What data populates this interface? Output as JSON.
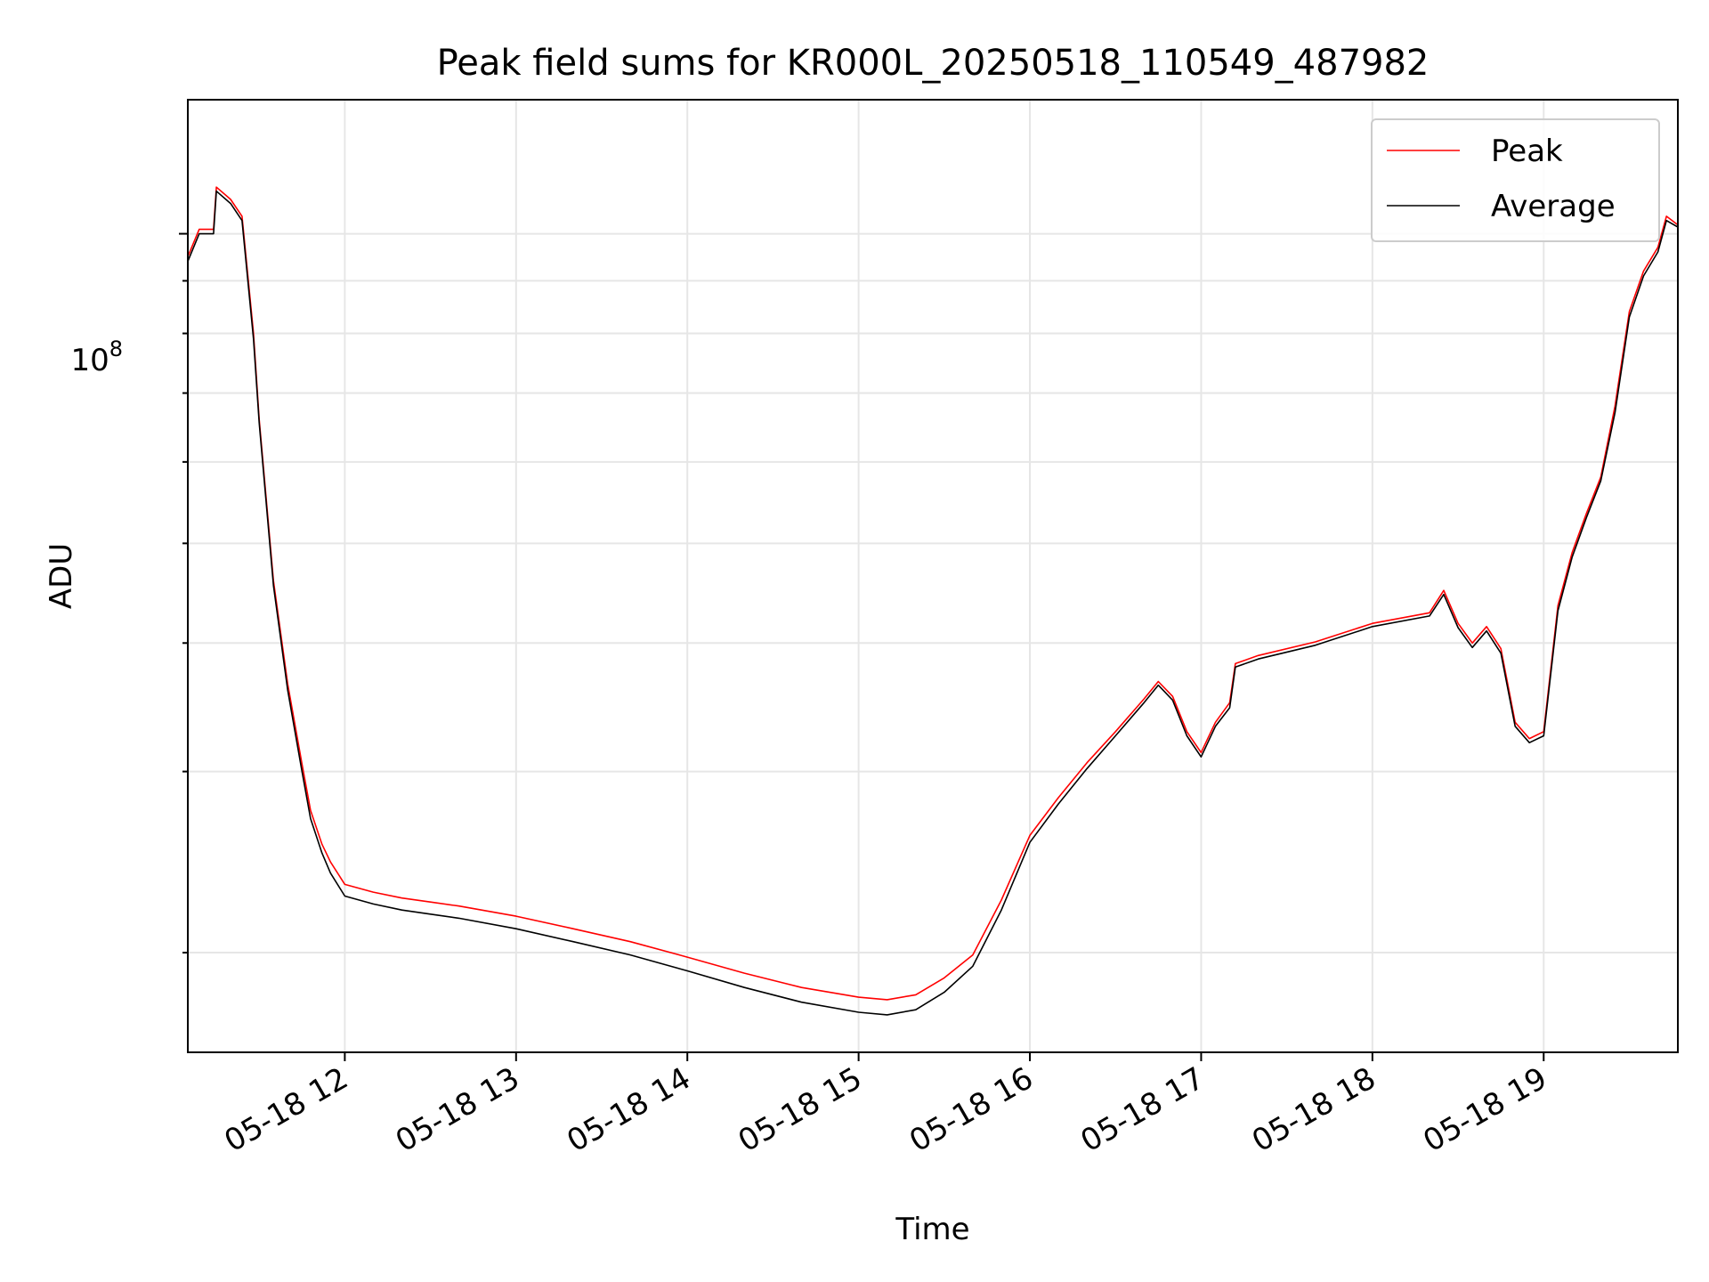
{
  "chart_data": {
    "type": "line",
    "title": "Peak field sums for KR000L_20250518_110549_487982",
    "xlabel": "Time",
    "ylabel": "ADU",
    "yscale": "log",
    "x_ticks": [
      "05-18 12",
      "05-18 13",
      "05-18 14",
      "05-18 15",
      "05-18 16",
      "05-18 17",
      "05-18 18",
      "05-18 19"
    ],
    "y_major_tick_base": "10",
    "y_major_tick_exp": "8",
    "xlim": [
      "2025-05-18 11:05",
      "2025-05-18 19:47"
    ],
    "ylim": [
      16000000,
      135000000
    ],
    "grid": true,
    "legend_position": "top-right",
    "series": [
      {
        "name": "Peak",
        "color": "#ff0000",
        "points": [
          [
            "11:05",
            95000000
          ],
          [
            "11:09",
            101000000
          ],
          [
            "11:14",
            101000000
          ],
          [
            "11:15",
            111000000
          ],
          [
            "11:20",
            108000000
          ],
          [
            "11:24",
            104000000
          ],
          [
            "11:28",
            80000000
          ],
          [
            "11:30",
            66000000
          ],
          [
            "11:35",
            46000000
          ],
          [
            "11:40",
            36500000
          ],
          [
            "11:45",
            30500000
          ],
          [
            "11:48",
            27500000
          ],
          [
            "11:52",
            25500000
          ],
          [
            "11:55",
            24500000
          ],
          [
            "12:00",
            23300000
          ],
          [
            "12:10",
            22900000
          ],
          [
            "12:20",
            22600000
          ],
          [
            "12:30",
            22400000
          ],
          [
            "12:40",
            22200000
          ],
          [
            "13:00",
            21700000
          ],
          [
            "13:20",
            21100000
          ],
          [
            "13:40",
            20500000
          ],
          [
            "14:00",
            19800000
          ],
          [
            "14:20",
            19100000
          ],
          [
            "14:40",
            18500000
          ],
          [
            "15:00",
            18100000
          ],
          [
            "15:10",
            18000000
          ],
          [
            "15:20",
            18200000
          ],
          [
            "15:30",
            18900000
          ],
          [
            "15:40",
            19900000
          ],
          [
            "15:50",
            22500000
          ],
          [
            "16:00",
            26000000
          ],
          [
            "16:10",
            28300000
          ],
          [
            "16:20",
            30600000
          ],
          [
            "16:30",
            32800000
          ],
          [
            "16:40",
            35300000
          ],
          [
            "16:45",
            36700000
          ],
          [
            "16:50",
            35500000
          ],
          [
            "16:55",
            32800000
          ],
          [
            "17:00",
            31300000
          ],
          [
            "17:05",
            33500000
          ],
          [
            "17:10",
            35000000
          ],
          [
            "17:12",
            38200000
          ],
          [
            "17:20",
            38900000
          ],
          [
            "17:40",
            40100000
          ],
          [
            "18:00",
            41800000
          ],
          [
            "18:20",
            42800000
          ],
          [
            "18:25",
            45000000
          ],
          [
            "18:30",
            41800000
          ],
          [
            "18:35",
            40000000
          ],
          [
            "18:40",
            41500000
          ],
          [
            "18:45",
            39500000
          ],
          [
            "18:50",
            33500000
          ],
          [
            "18:55",
            32300000
          ],
          [
            "19:00",
            32800000
          ],
          [
            "19:05",
            43500000
          ],
          [
            "19:10",
            49000000
          ],
          [
            "19:15",
            53500000
          ],
          [
            "19:20",
            58000000
          ],
          [
            "19:25",
            68000000
          ],
          [
            "19:30",
            84000000
          ],
          [
            "19:35",
            92000000
          ],
          [
            "19:40",
            97000000
          ],
          [
            "19:43",
            104000000
          ],
          [
            "19:47",
            102000000
          ]
        ]
      },
      {
        "name": "Average",
        "color": "#000000",
        "points": [
          [
            "11:05",
            94000000
          ],
          [
            "11:09",
            100000000
          ],
          [
            "11:14",
            100000000
          ],
          [
            "11:15",
            110000000
          ],
          [
            "11:20",
            107000000
          ],
          [
            "11:24",
            103000000
          ],
          [
            "11:28",
            79000000
          ],
          [
            "11:30",
            65500000
          ],
          [
            "11:35",
            45500000
          ],
          [
            "11:40",
            36000000
          ],
          [
            "11:45",
            30000000
          ],
          [
            "11:48",
            27000000
          ],
          [
            "11:52",
            25000000
          ],
          [
            "11:55",
            23900000
          ],
          [
            "12:00",
            22700000
          ],
          [
            "12:10",
            22300000
          ],
          [
            "12:20",
            22000000
          ],
          [
            "12:30",
            21800000
          ],
          [
            "12:40",
            21600000
          ],
          [
            "13:00",
            21100000
          ],
          [
            "13:20",
            20500000
          ],
          [
            "13:40",
            19900000
          ],
          [
            "14:00",
            19200000
          ],
          [
            "14:20",
            18500000
          ],
          [
            "14:40",
            17900000
          ],
          [
            "15:00",
            17500000
          ],
          [
            "15:10",
            17400000
          ],
          [
            "15:20",
            17600000
          ],
          [
            "15:30",
            18300000
          ],
          [
            "15:40",
            19400000
          ],
          [
            "15:50",
            22000000
          ],
          [
            "16:00",
            25600000
          ],
          [
            "16:10",
            27900000
          ],
          [
            "16:20",
            30200000
          ],
          [
            "16:30",
            32500000
          ],
          [
            "16:40",
            35000000
          ],
          [
            "16:45",
            36400000
          ],
          [
            "16:50",
            35200000
          ],
          [
            "16:55",
            32500000
          ],
          [
            "17:00",
            31000000
          ],
          [
            "17:05",
            33200000
          ],
          [
            "17:10",
            34600000
          ],
          [
            "17:12",
            37900000
          ],
          [
            "17:20",
            38600000
          ],
          [
            "17:40",
            39800000
          ],
          [
            "18:00",
            41500000
          ],
          [
            "18:20",
            42500000
          ],
          [
            "18:25",
            44600000
          ],
          [
            "18:30",
            41400000
          ],
          [
            "18:35",
            39600000
          ],
          [
            "18:40",
            41100000
          ],
          [
            "18:45",
            39100000
          ],
          [
            "18:50",
            33200000
          ],
          [
            "18:55",
            32000000
          ],
          [
            "19:00",
            32500000
          ],
          [
            "19:05",
            43000000
          ],
          [
            "19:10",
            48500000
          ],
          [
            "19:15",
            53000000
          ],
          [
            "19:20",
            57500000
          ],
          [
            "19:25",
            67000000
          ],
          [
            "19:30",
            83000000
          ],
          [
            "19:35",
            91000000
          ],
          [
            "19:40",
            96000000
          ],
          [
            "19:43",
            103000000
          ],
          [
            "19:47",
            101500000
          ]
        ]
      }
    ]
  }
}
